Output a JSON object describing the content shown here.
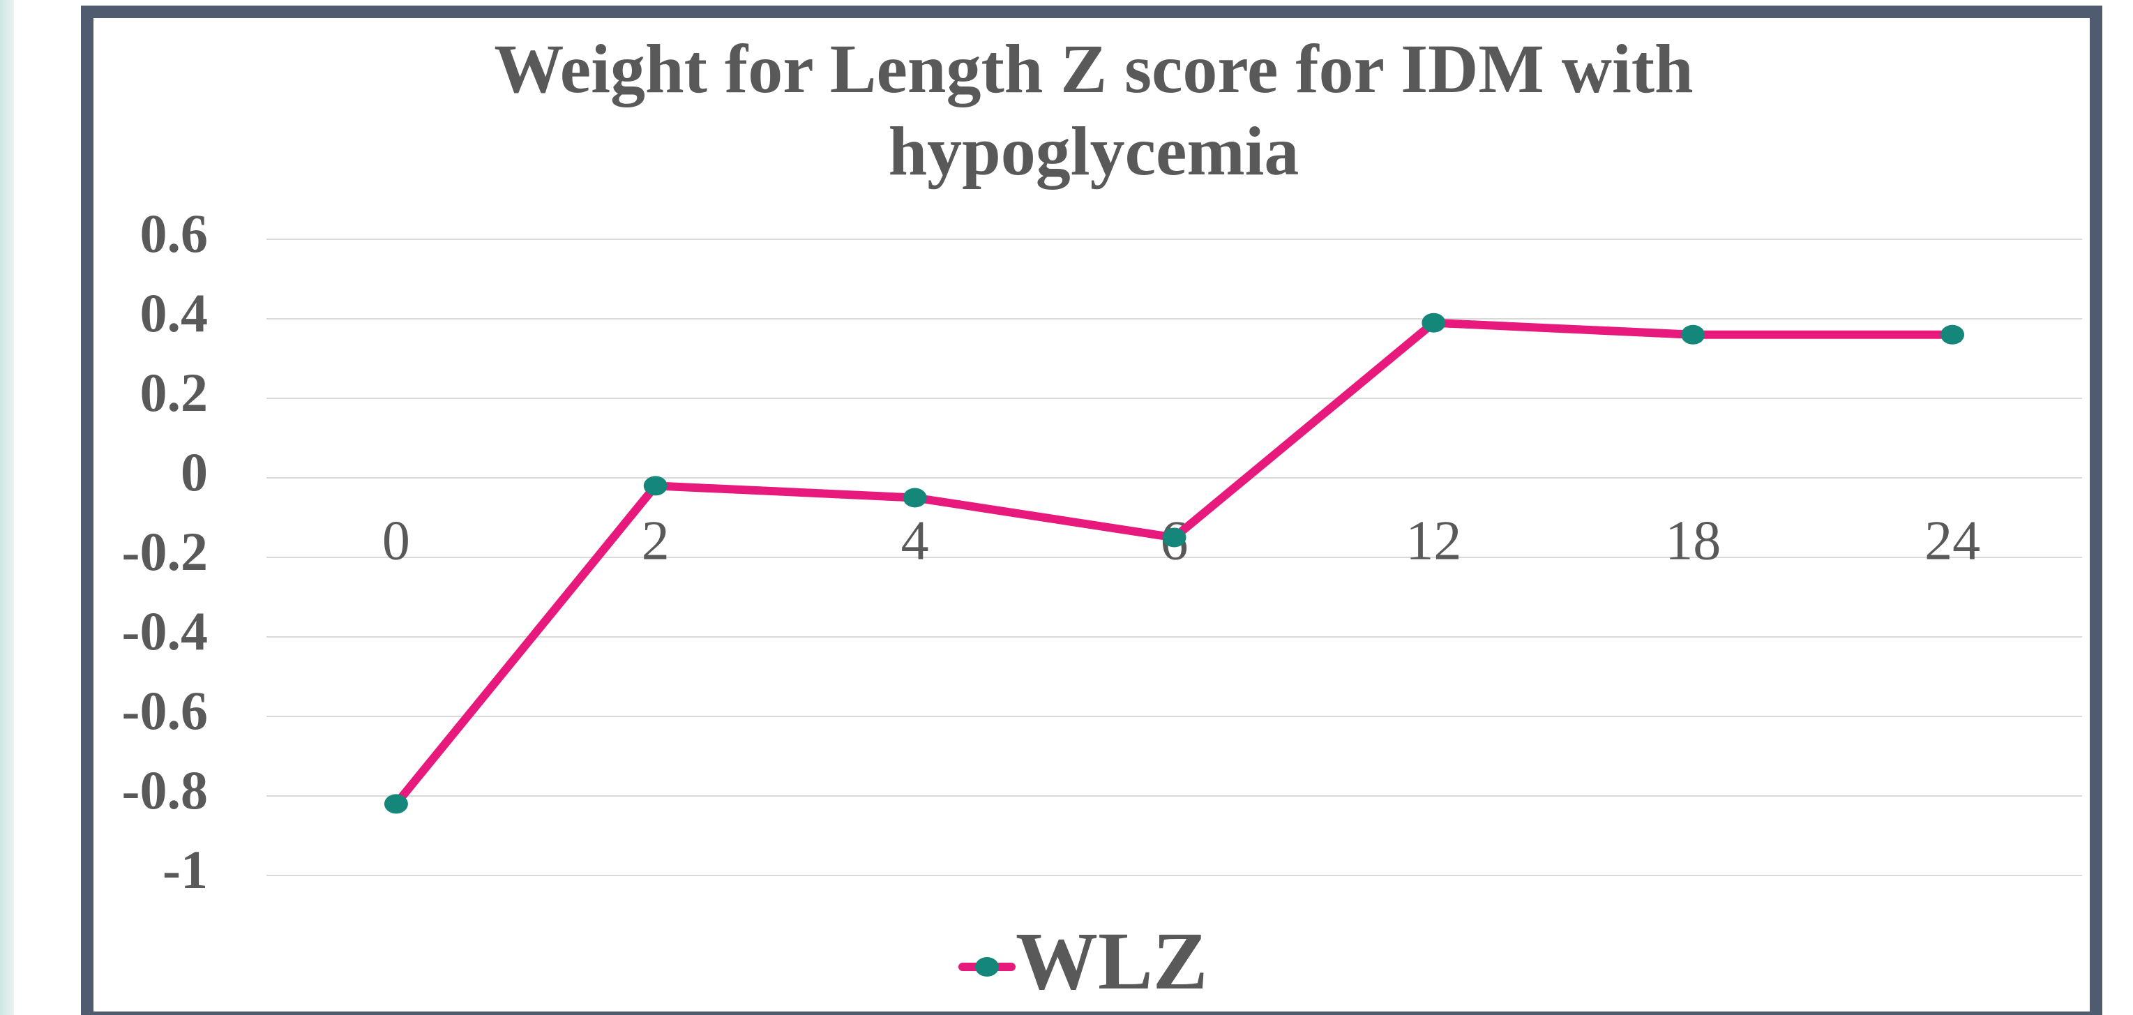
{
  "chart_data": {
    "type": "line",
    "title": "Weight for Length Z score for IDM with hypoglycemia",
    "categories": [
      "0",
      "2",
      "4",
      "6",
      "12",
      "18",
      "24"
    ],
    "series": [
      {
        "name": "WLZ",
        "color": "#e8197d",
        "marker_color": "#14877a",
        "values": [
          -0.82,
          -0.02,
          -0.05,
          -0.15,
          0.39,
          0.36,
          0.36
        ]
      }
    ],
    "ylim": [
      -1,
      0.6
    ],
    "yticks": [
      -1,
      -0.8,
      -0.6,
      -0.4,
      -0.2,
      0,
      0.2,
      0.4,
      0.6
    ],
    "grid": true,
    "legend": "bottom"
  }
}
